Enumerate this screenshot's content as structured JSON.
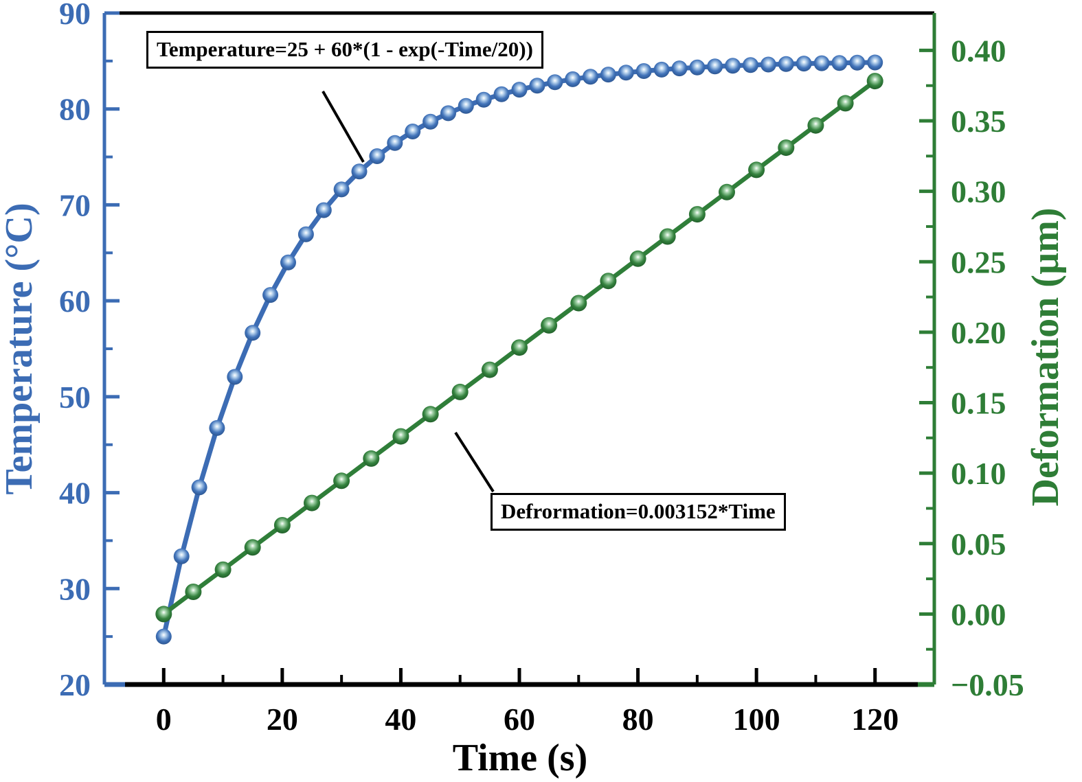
{
  "chart_data": {
    "type": "line",
    "title": "",
    "xlabel": "Time (s)",
    "ylabel_left": "Temperature (°C)",
    "ylabel_right": "Deformation (µm)",
    "x_range": [
      -10,
      130
    ],
    "y_left_range": [
      20,
      90
    ],
    "y_right_range": [
      -0.05,
      0.4265
    ],
    "grid": false,
    "legend": "none",
    "x_axis": {
      "color": "#000000",
      "major_ticks": [
        0,
        20,
        40,
        60,
        80,
        100,
        120
      ],
      "minor_ticks": [
        10,
        30,
        50,
        70,
        90,
        110
      ],
      "tick_labels": [
        "0",
        "20",
        "40",
        "60",
        "80",
        "100",
        "120"
      ]
    },
    "y_left_axis": {
      "color": "#3c6cb4",
      "major_ticks": [
        20,
        30,
        40,
        50,
        60,
        70,
        80,
        90
      ],
      "minor_ticks": [
        25,
        35,
        45,
        55,
        65,
        75,
        85
      ],
      "tick_labels": [
        "20",
        "30",
        "40",
        "50",
        "60",
        "70",
        "80",
        "90"
      ]
    },
    "y_right_axis": {
      "color": "#2e7d36",
      "major_ticks": [
        -0.05,
        0.0,
        0.05,
        0.1,
        0.15,
        0.2,
        0.25,
        0.3,
        0.35,
        0.4
      ],
      "minor_ticks": [
        -0.025,
        0.025,
        0.075,
        0.125,
        0.175,
        0.225,
        0.275,
        0.325,
        0.375
      ],
      "tick_labels": [
        "−0.05",
        "0.00",
        "0.05",
        "0.10",
        "0.15",
        "0.20",
        "0.25",
        "0.30",
        "0.35",
        "0.40"
      ]
    },
    "series": [
      {
        "name": "Temperature",
        "axis": "left",
        "line_color": "#3c6cb4",
        "marker_gradient": [
          "#ffffff",
          "#b9d4ee",
          "#4274ba",
          "#2a538e"
        ],
        "x": [
          0,
          3,
          6,
          9,
          12,
          15,
          18,
          21,
          24,
          27,
          30,
          33,
          36,
          39,
          42,
          45,
          48,
          51,
          54,
          57,
          60,
          63,
          66,
          69,
          72,
          75,
          78,
          81,
          84,
          87,
          90,
          93,
          96,
          99,
          102,
          105,
          108,
          111,
          114,
          117,
          120
        ],
        "y": [
          25,
          33.36,
          40.55,
          46.74,
          52.07,
          56.66,
          60.61,
          64.0,
          66.93,
          69.45,
          71.61,
          73.48,
          75.08,
          76.46,
          77.65,
          78.68,
          79.56,
          80.32,
          80.97,
          81.53,
          82.01,
          82.43,
          82.79,
          83.1,
          83.36,
          83.59,
          83.79,
          83.95,
          84.1,
          84.23,
          84.33,
          84.43,
          84.51,
          84.58,
          84.63,
          84.69,
          84.73,
          84.77,
          84.8,
          84.83,
          84.85
        ]
      },
      {
        "name": "Deformation",
        "axis": "right",
        "line_color": "#2f7e39",
        "marker_gradient": [
          "#ffffff",
          "#a6d4ac",
          "#35833f",
          "#1f5c28"
        ],
        "x": [
          0,
          5,
          10,
          15,
          20,
          25,
          30,
          35,
          40,
          45,
          50,
          55,
          60,
          65,
          70,
          75,
          80,
          85,
          90,
          95,
          100,
          105,
          110,
          115,
          120
        ],
        "y": [
          0,
          0.01576,
          0.03152,
          0.04728,
          0.06304,
          0.0788,
          0.09456,
          0.11032,
          0.12608,
          0.14184,
          0.1576,
          0.17336,
          0.18912,
          0.20488,
          0.22064,
          0.2364,
          0.25216,
          0.26792,
          0.28368,
          0.29944,
          0.3152,
          0.33096,
          0.34672,
          0.36248,
          0.37824
        ]
      }
    ],
    "annotations": [
      {
        "id": "temperature-equation",
        "text": "Temperature=25 + 60*(1 - exp(-Time/20))"
      },
      {
        "id": "deformation-equation",
        "text": "Defrormation=0.003152*Time"
      }
    ]
  }
}
